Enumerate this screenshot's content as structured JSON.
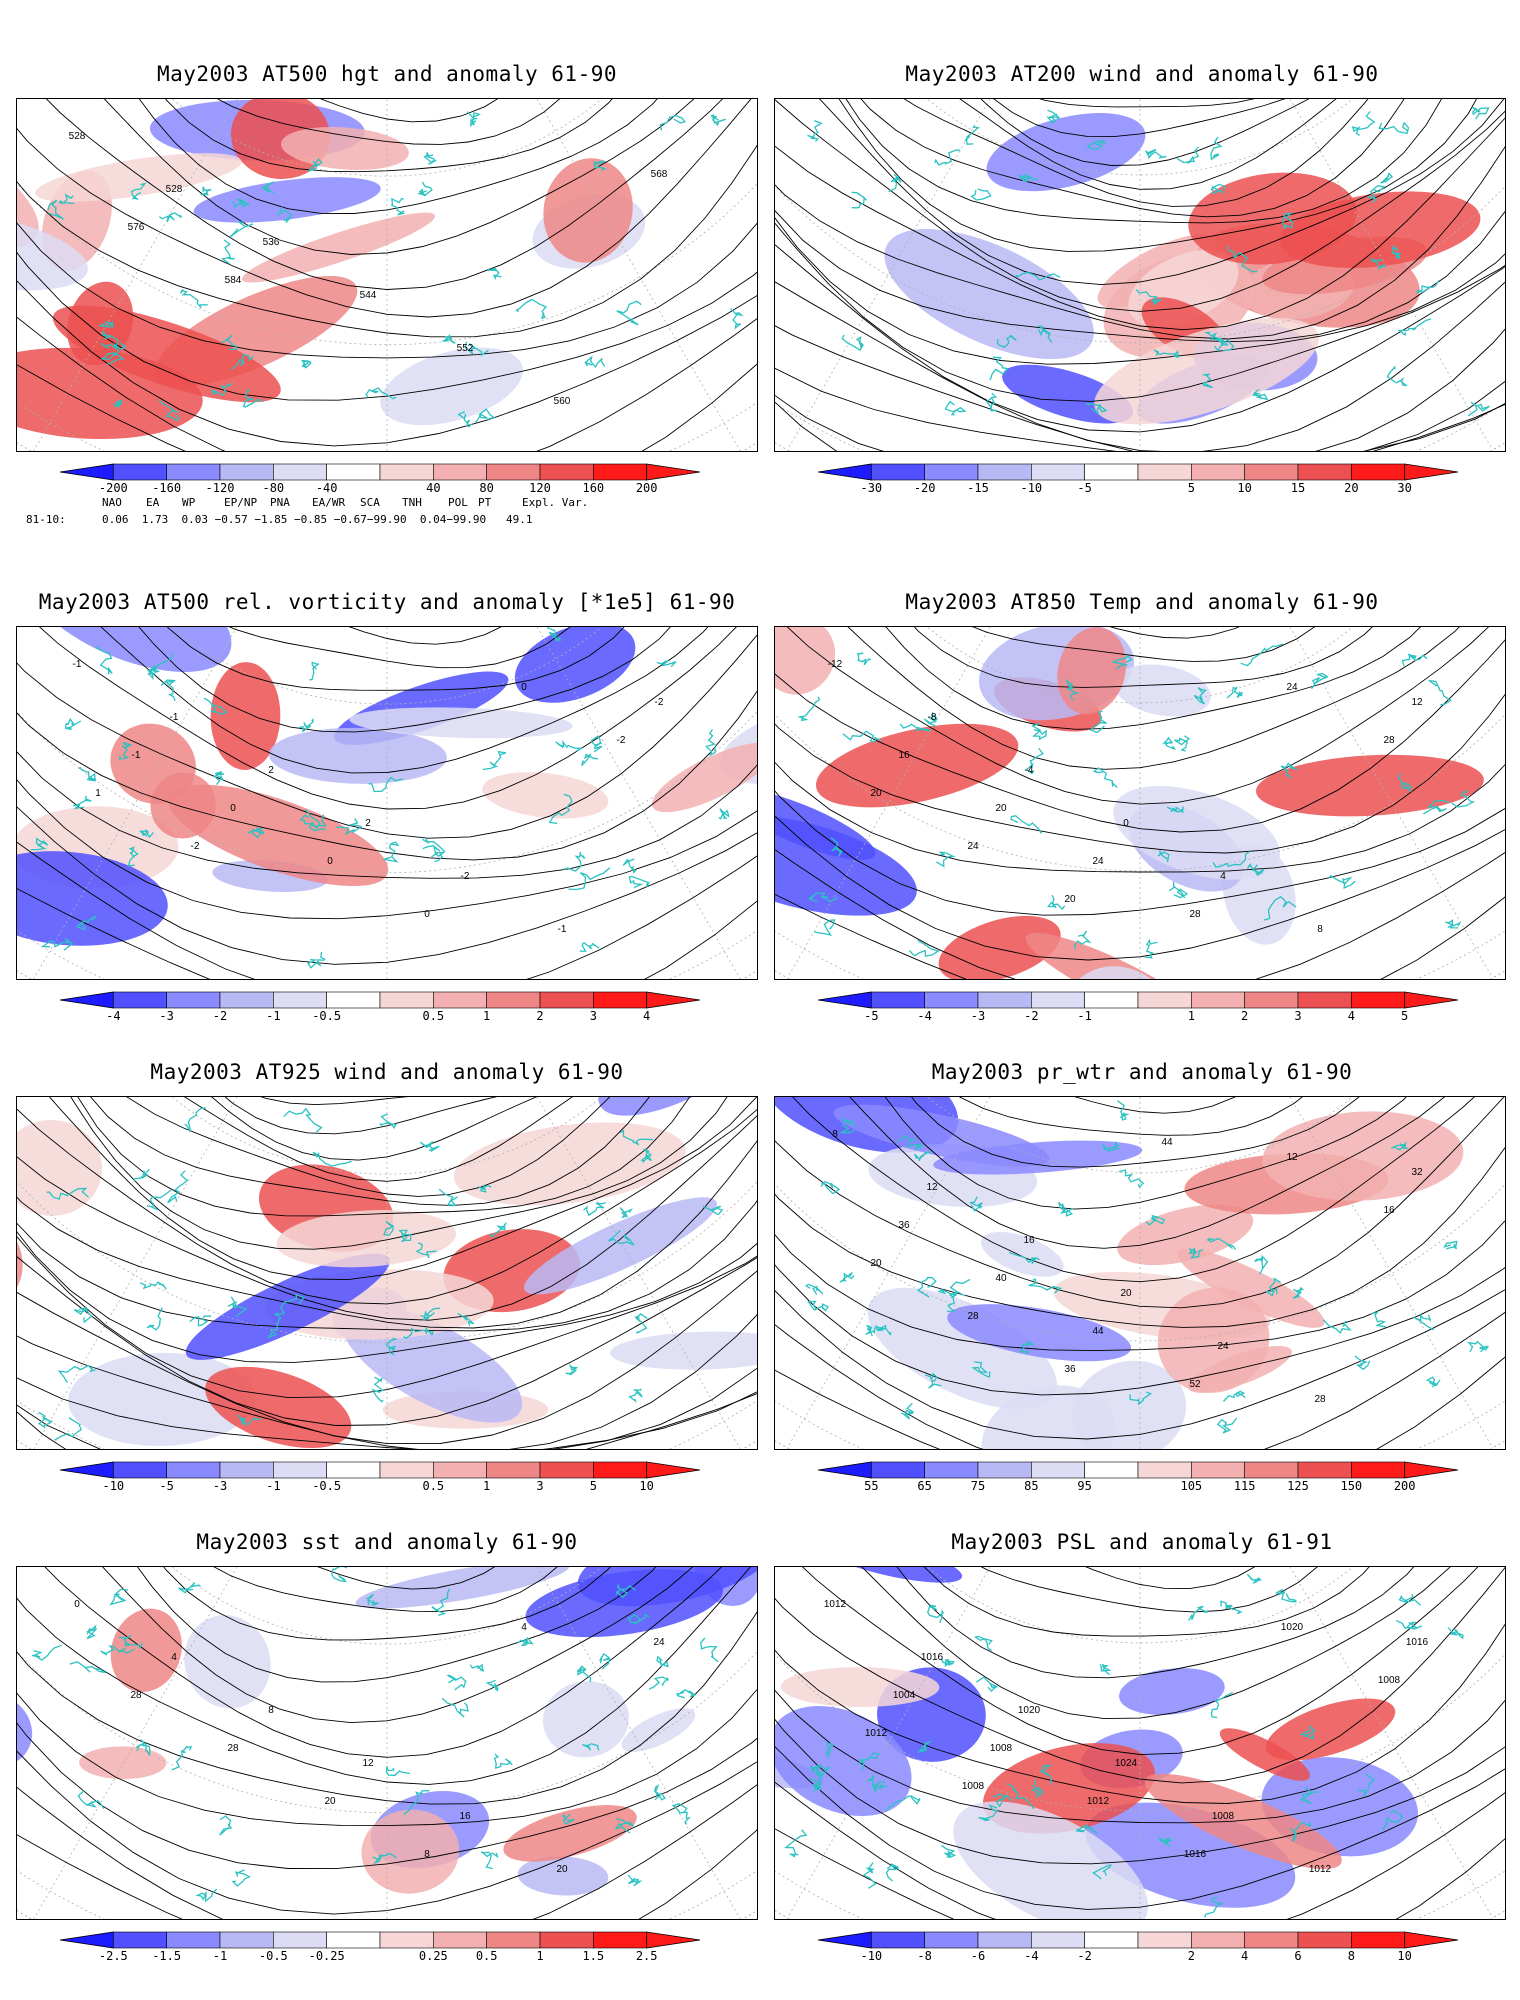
{
  "panels": [
    {
      "id": "p1",
      "title": "May2003 AT500 hgt and anomaly 61-90",
      "colorbar": [
        "-200",
        "-160",
        "-120",
        "-80",
        "-40",
        "40",
        "80",
        "120",
        "160",
        "200"
      ],
      "contour_labels": [
        "528",
        "528",
        "536",
        "544",
        "552",
        "560",
        "568",
        "576",
        "584"
      ]
    },
    {
      "id": "p2",
      "title": "May2003 AT200 wind and anomaly 61-90",
      "colorbar": [
        "-30",
        "-20",
        "-15",
        "-10",
        "-5",
        "5",
        "10",
        "15",
        "20",
        "30"
      ],
      "contour_labels": []
    },
    {
      "id": "p3",
      "title": "May2003 AT500 rel. vorticity and anomaly [*1e5] 61-90",
      "colorbar": [
        "-4",
        "-3",
        "-2",
        "-1",
        "-0.5",
        "0.5",
        "1",
        "2",
        "3",
        "4"
      ],
      "contour_labels": [
        "-1",
        "-1",
        "2",
        "2",
        "-2",
        "-1",
        "-2",
        "-1",
        "0",
        "0",
        "0",
        "0",
        "-2",
        "1",
        "-2"
      ]
    },
    {
      "id": "p4",
      "title": "May2003 AT850 Temp and anomaly 61-90",
      "colorbar": [
        "-5",
        "-4",
        "-3",
        "-2",
        "-1",
        "1",
        "2",
        "3",
        "4",
        "5"
      ],
      "contour_labels": [
        "-12",
        "-8",
        "-4",
        "0",
        "4",
        "8",
        "12",
        "16",
        "20",
        "24",
        "28",
        "24",
        "28",
        "20",
        "24",
        "20"
      ]
    },
    {
      "id": "p5",
      "title": "May2003 AT925 wind and anomaly 61-90",
      "colorbar": [
        "-10",
        "-5",
        "-3",
        "-1",
        "-0.5",
        "0.5",
        "1",
        "3",
        "5",
        "10"
      ],
      "contour_labels": []
    },
    {
      "id": "p6",
      "title": "May2003 pr_wtr and anomaly 61-90",
      "colorbar": [
        "55",
        "65",
        "75",
        "85",
        "95",
        "105",
        "115",
        "125",
        "150",
        "200"
      ],
      "contour_labels": [
        "8",
        "12",
        "16",
        "20",
        "24",
        "28",
        "32",
        "36",
        "40",
        "44",
        "52",
        "12",
        "16",
        "20",
        "28",
        "36",
        "44"
      ]
    },
    {
      "id": "p7",
      "title": "May2003 sst and anomaly 61-90",
      "colorbar": [
        "-2.5",
        "-1.5",
        "-1",
        "-0.5",
        "-0.25",
        "0.25",
        "0.5",
        "1",
        "1.5",
        "2.5"
      ],
      "contour_labels": [
        "0",
        "4",
        "8",
        "12",
        "16",
        "20",
        "24",
        "28",
        "28",
        "20",
        "8",
        "4"
      ]
    },
    {
      "id": "p8",
      "title": "May2003 PSL and anomaly 61-91",
      "colorbar": [
        "-10",
        "-8",
        "-6",
        "-4",
        "-2",
        "2",
        "4",
        "6",
        "8",
        "10"
      ],
      "contour_labels": [
        "1012",
        "1016",
        "1020",
        "1024",
        "1008",
        "1012",
        "1016",
        "1004",
        "1008",
        "1012",
        "1016",
        "1020",
        "1008",
        "1012",
        "1008"
      ]
    }
  ],
  "teleconnections": {
    "headers": [
      "NAO",
      "EA",
      "WP",
      "EP/NP",
      "PNA",
      "EA/WR",
      "SCA",
      "TNH",
      "POL",
      "PT",
      "Expl. Var."
    ],
    "row_label": "81-10:",
    "values_text": "0.06  1.73  0.03 −0.57 −1.85 −0.85 −0.67−99.90  0.04−99.90   49.1"
  },
  "colors": {
    "blue_scale": [
      "#1c1cff",
      "#5050ff",
      "#8a8aff",
      "#b8b8f4",
      "#dcdcf4"
    ],
    "red_scale": [
      "#f6d6d6",
      "#f2b0b0",
      "#ee8686",
      "#ec5050",
      "#ff1a1a"
    ],
    "coast": "#2bc2c2",
    "grid": "#b0b0b0",
    "contour": "#000000"
  }
}
